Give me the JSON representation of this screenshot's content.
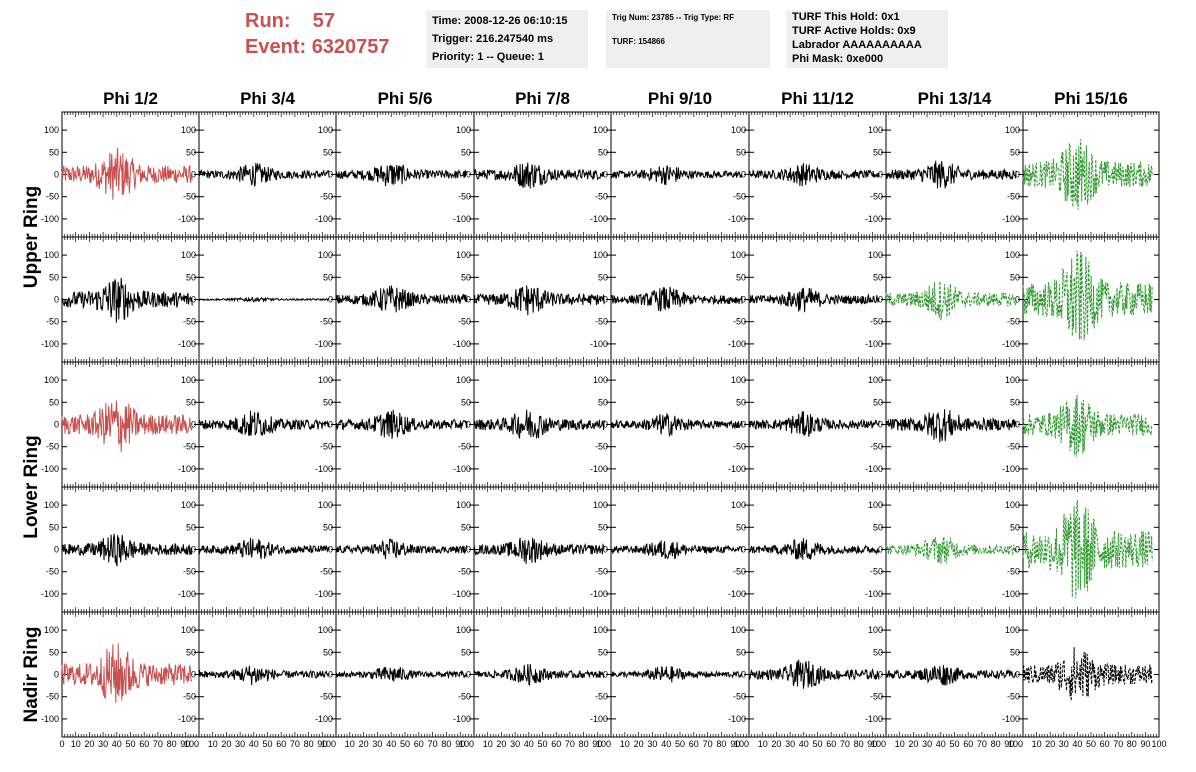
{
  "header": {
    "run_label": "Run:",
    "run_value": "57",
    "event_label": "Event:",
    "event_value": "6320757",
    "time": "Time: 2008-12-26 06:10:15",
    "trigger": "Trigger: 216.247540 ms",
    "priority": "Priority: 1 -- Queue: 1",
    "trig_num": "Trig Num: 23785 -- Trig Type: RF",
    "turf": "TURF: 154866",
    "turf_this_hold": "TURF This Hold: 0x1",
    "turf_active_holds": "TURF Active Holds: 0x9",
    "labrador": "Labrador AAAAAAAAAA",
    "phi_mask": "Phi Mask: 0xe000"
  },
  "colors": {
    "highlight_red": "#c9504f",
    "green": "#2e9a2e",
    "black": "#000000",
    "panel_bg": "#efefef"
  },
  "chart_data": {
    "type": "line",
    "columns": [
      "Phi 1/2",
      "Phi 3/4",
      "Phi 5/6",
      "Phi 7/8",
      "Phi 9/10",
      "Phi 11/12",
      "Phi 13/14",
      "Phi 15/16"
    ],
    "row_groups": [
      {
        "label": "Upper Ring",
        "rows": [
          0,
          1
        ]
      },
      {
        "label": "Lower Ring",
        "rows": [
          2,
          3
        ]
      },
      {
        "label": "Nadir Ring",
        "rows": [
          4
        ]
      }
    ],
    "ylim": [
      -125,
      125
    ],
    "y_ticks": [
      -100,
      -50,
      0,
      50,
      100
    ],
    "x_ticks": [
      0,
      10,
      20,
      30,
      40,
      50,
      60,
      70,
      80,
      90,
      100
    ],
    "xlim": [
      0,
      100
    ],
    "trace_x_range": [
      0,
      95
    ],
    "panel_styles": [
      [
        "red",
        "black",
        "black",
        "black",
        "black",
        "black",
        "black",
        "green-dash"
      ],
      [
        "black",
        "black",
        "black",
        "black",
        "black",
        "black",
        "green-dash",
        "green-dash"
      ],
      [
        "red",
        "black",
        "black",
        "black",
        "black",
        "black",
        "black",
        "green-dash"
      ],
      [
        "black",
        "black",
        "black",
        "black",
        "black",
        "black",
        "green-dash",
        "green-dash"
      ],
      [
        "red",
        "black",
        "black",
        "black",
        "black",
        "black",
        "black",
        "black-dash"
      ]
    ],
    "panel_amplitudes": [
      [
        45,
        20,
        22,
        25,
        18,
        20,
        25,
        65
      ],
      [
        40,
        4,
        25,
        28,
        22,
        22,
        35,
        85
      ],
      [
        50,
        25,
        25,
        28,
        20,
        22,
        30,
        55
      ],
      [
        28,
        20,
        18,
        25,
        18,
        20,
        25,
        95
      ],
      [
        55,
        18,
        15,
        18,
        15,
        25,
        20,
        50
      ]
    ]
  }
}
